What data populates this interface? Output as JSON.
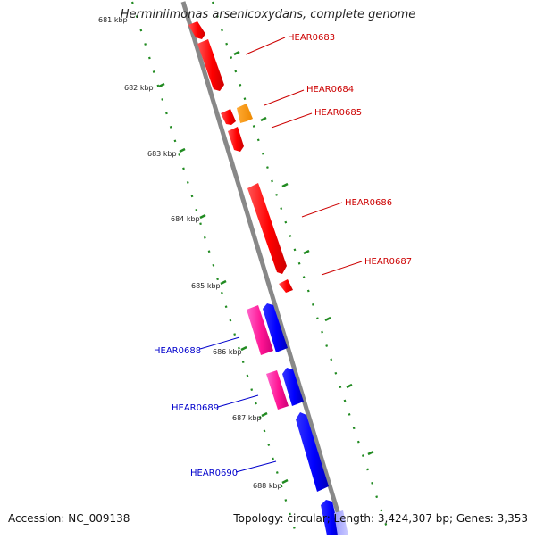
{
  "title": "Herminiimonas arsenicoxydans, complete genome",
  "accession": "Accession: NC_009138",
  "topology": "Topology: circular; Length: 3,424,307 bp; Genes: 3,353",
  "ticks": [
    {
      "label": "682 kbp"
    },
    {
      "label": "683 kbp"
    },
    {
      "label": "684 kbp"
    },
    {
      "label": "685 kbp"
    },
    {
      "label": "686 kbp"
    },
    {
      "label": "687 kbp"
    },
    {
      "label": "688 kbp"
    }
  ],
  "genes": [
    {
      "id": "HEAR0683",
      "strand": "plus"
    },
    {
      "id": "HEAR0684",
      "strand": "plus"
    },
    {
      "id": "HEAR0685",
      "strand": "plus"
    },
    {
      "id": "HEAR0686",
      "strand": "plus"
    },
    {
      "id": "HEAR0687",
      "strand": "plus"
    },
    {
      "id": "HEAR0688",
      "strand": "minus"
    },
    {
      "id": "HEAR0689",
      "strand": "minus"
    },
    {
      "id": "HEAR0690",
      "strand": "minus"
    }
  ],
  "colors": {
    "plus_gene": "#ff0000",
    "plus_gene_label": "#cc0000",
    "rna_gene": "#ff8800",
    "minus_gene": "#0000ff",
    "minus_gene_label": "#0000cc",
    "pseudo_gene": "#ff1493",
    "backbone": "#888888",
    "tick": "#228b22"
  }
}
